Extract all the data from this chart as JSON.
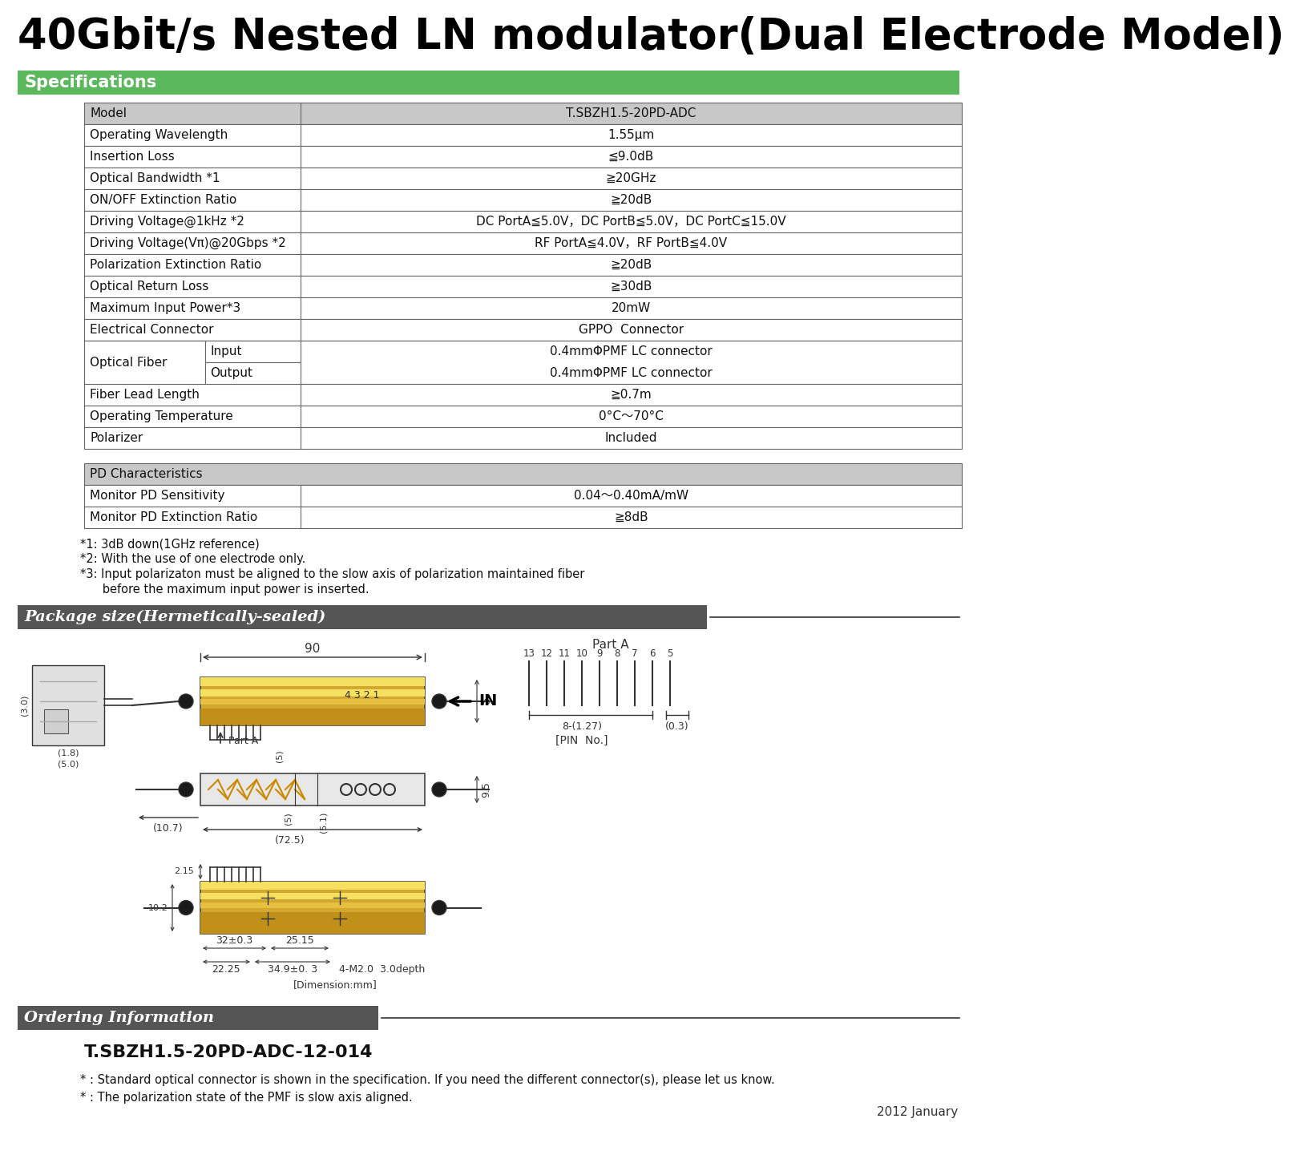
{
  "title": "40Gbit/s Nested LN modulator(Dual Electrode Model)",
  "spec_green": "#5cb85c",
  "pkg_dark": "#555555",
  "table_border": "#666666",
  "header_bg": "#c8c8c8",
  "white": "#ffffff",
  "black": "#000000",
  "spec_rows": [
    [
      "Model",
      "T.SBZH1.5-20PD-ADC",
      true
    ],
    [
      "Operating Wavelength",
      "1.55μm",
      false
    ],
    [
      "Insertion Loss",
      "≦9.0dB",
      false
    ],
    [
      "Optical Bandwidth *1",
      "≧20GHz",
      false
    ],
    [
      "ON/OFF Extinction Ratio",
      "≧20dB",
      false
    ],
    [
      "Driving Voltage@1kHz *2",
      "DC PortA≦5.0V，DC PortB≦5.0V，DC PortC≦15.0V",
      false
    ],
    [
      "Driving Voltage(Vπ)@20Gbps *2",
      "RF PortA≦4.0V，RF PortB≦4.0V",
      false
    ],
    [
      "Polarization Extinction Ratio",
      "≧20dB",
      false
    ],
    [
      "Optical Return Loss",
      "≧30dB",
      false
    ],
    [
      "Maximum Input Power*3",
      "20mW",
      false
    ],
    [
      "Electrical Connector",
      "GPPO  Connector",
      false
    ],
    [
      "Optical Fiber",
      "Input|0.4mmΦPMF LC connector",
      false
    ],
    [
      "Optical Fiber",
      "Output|0.4mmΦPMF LC connector",
      false
    ],
    [
      "Fiber Lead Length",
      "≧0.7m",
      false
    ],
    [
      "Operating Temperature",
      "0°C～70°C",
      false
    ],
    [
      "Polarizer",
      "Included",
      false
    ]
  ],
  "pd_rows": [
    [
      "PD Characteristics",
      "",
      true
    ],
    [
      "Monitor PD Sensitivity",
      "0.04～0.40mA/mW",
      false
    ],
    [
      "Monitor PD Extinction Ratio",
      "≧8dB",
      false
    ]
  ],
  "footnotes": [
    "*1: 3dB down(1GHz reference)",
    "*2: With the use of one electrode only.",
    "*3: Input polarizaton must be aligned to the slow axis of polarization maintained fiber",
    "      before the maximum input power is inserted."
  ],
  "package_section": "Package size(Hermetically-sealed)",
  "ordering_section": "Ordering Information",
  "ordering_model": "T.SBZH1.5-20PD-ADC-12-014",
  "ordering_notes": [
    "* : Standard optical connector is shown in the specification. If you need the different connector(s), please let us know.",
    "* : The polarization state of the PMF is slow axis aligned."
  ],
  "year_label": "2012 January",
  "bg_color": "#ffffff",
  "gold_body": "#d4a830",
  "gold_light": "#f5e060",
  "gold_mid": "#e8c040"
}
